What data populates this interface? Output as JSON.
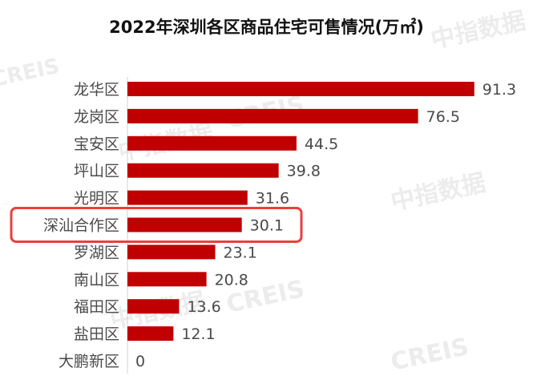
{
  "chart_data": {
    "type": "bar",
    "orientation": "horizontal",
    "title": "2022年深圳各区商品住宅可售情况(万㎡)",
    "categories": [
      "龙华区",
      "龙岗区",
      "宝安区",
      "坪山区",
      "光明区",
      "深汕合作区",
      "罗湖区",
      "南山区",
      "福田区",
      "盐田区",
      "大鹏新区"
    ],
    "values": [
      91.3,
      76.5,
      44.5,
      39.8,
      31.6,
      30.1,
      23.1,
      20.8,
      13.6,
      12.1,
      0
    ],
    "value_labels": [
      "91.3",
      "76.5",
      "44.5",
      "39.8",
      "31.6",
      "30.1",
      "23.1",
      "20.8",
      "13.6",
      "12.1",
      "0"
    ],
    "highlight_category": "深汕合作区",
    "xlim": [
      0,
      100
    ],
    "grid": false,
    "legend": "none",
    "bar_color": "#c00000",
    "highlight_color": "#e8413b"
  },
  "watermarks": [
    "CREIS",
    "中指数据",
    "CREIS",
    "中指数据",
    "CREIS",
    "中指数据",
    "CREIS",
    "中指数据"
  ]
}
